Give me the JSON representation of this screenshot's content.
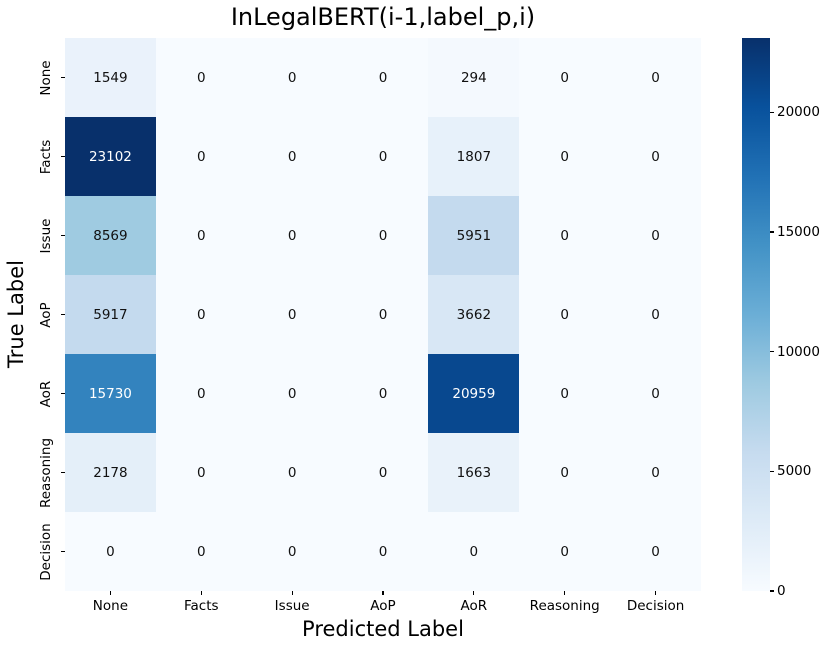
{
  "chart_data": {
    "type": "heatmap",
    "title": "InLegalBERT(i-1,label_p,i)",
    "xlabel": "Predicted Label",
    "ylabel": "True Label",
    "x_categories": [
      "None",
      "Facts",
      "Issue",
      "AoP",
      "AoR",
      "Reasoning",
      "Decision"
    ],
    "y_categories": [
      "None",
      "Facts",
      "Issue",
      "AoP",
      "AoR",
      "Reasoning",
      "Decision"
    ],
    "matrix": [
      [
        1549,
        0,
        0,
        0,
        294,
        0,
        0
      ],
      [
        23102,
        0,
        0,
        0,
        1807,
        0,
        0
      ],
      [
        8569,
        0,
        0,
        0,
        5951,
        0,
        0
      ],
      [
        5917,
        0,
        0,
        0,
        3662,
        0,
        0
      ],
      [
        15730,
        0,
        0,
        0,
        20959,
        0,
        0
      ],
      [
        2178,
        0,
        0,
        0,
        1663,
        0,
        0
      ],
      [
        0,
        0,
        0,
        0,
        0,
        0,
        0
      ]
    ],
    "vmin": 0,
    "vmax": 23102,
    "colormap": "Blues",
    "colormap_stops": [
      "#f7fbff",
      "#deebf7",
      "#c6dbef",
      "#9ecae1",
      "#6baed6",
      "#4292c6",
      "#2171b5",
      "#08519c",
      "#08306b"
    ],
    "colorbar_ticks": [
      0,
      5000,
      10000,
      15000,
      20000
    ],
    "annotation_text_dark": "#111111",
    "annotation_text_light": "#ffffff",
    "legend_position": "right",
    "grid": false
  }
}
